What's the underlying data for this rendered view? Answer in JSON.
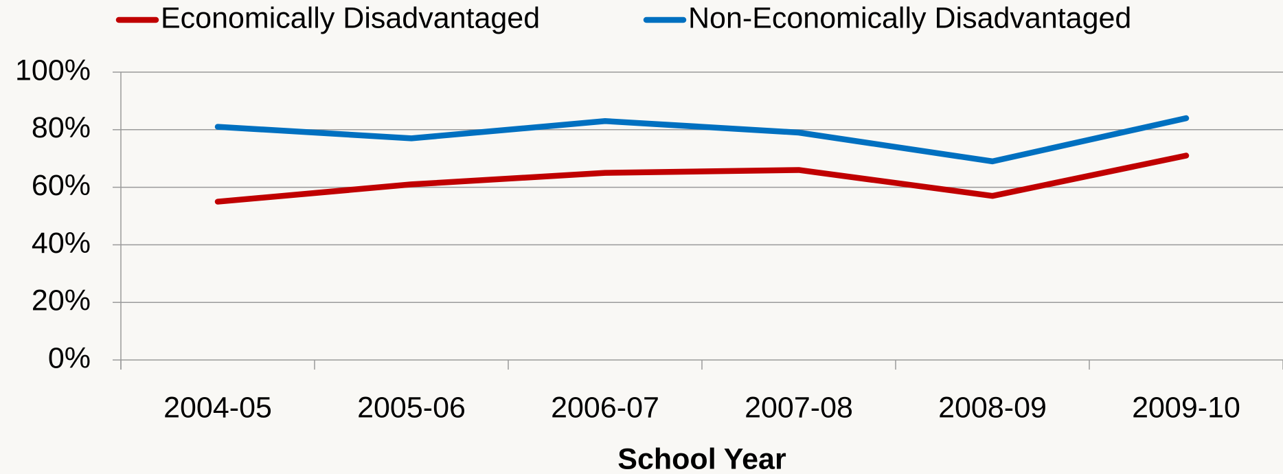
{
  "chart_data": {
    "type": "line",
    "x_label": "School Year",
    "categories": [
      "2004-05",
      "2005-06",
      "2006-07",
      "2007-08",
      "2008-09",
      "2009-10"
    ],
    "series": [
      {
        "name": "Economically Disadvantaged",
        "color": "#c00000",
        "values": [
          55,
          61,
          65,
          66,
          57,
          71
        ]
      },
      {
        "name": "Non-Economically Disadvantaged",
        "color": "#0070c0",
        "values": [
          81,
          77,
          83,
          79,
          69,
          84
        ]
      }
    ],
    "ylim": [
      0,
      100
    ],
    "yticks": [
      {
        "value": 0,
        "label": "0%"
      },
      {
        "value": 20,
        "label": "20%"
      },
      {
        "value": 40,
        "label": "40%"
      },
      {
        "value": 60,
        "label": "60%"
      },
      {
        "value": 80,
        "label": "80%"
      },
      {
        "value": 100,
        "label": "100%"
      }
    ],
    "grid": true,
    "legend": "top"
  }
}
